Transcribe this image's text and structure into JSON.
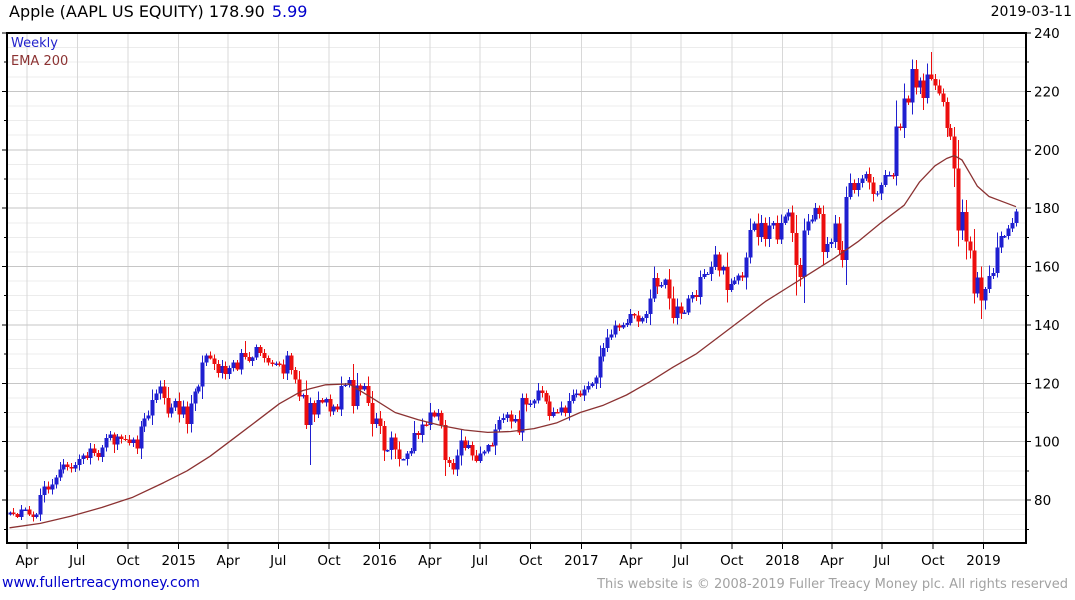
{
  "header": {
    "title": "Apple (AAPL US EQUITY) 178.90",
    "change": "5.99",
    "date": "2019-03-11"
  },
  "legend": {
    "timeframe": "Weekly",
    "overlay": "EMA 200"
  },
  "footer": {
    "site": "www.fullertreacymoney.com",
    "copyright": "This website is © 2008-2019 Fuller Treacy Money plc. All rights reserved"
  },
  "colors": {
    "up": "#1f1fd0",
    "down": "#ec0e0e",
    "ema": "#8b3232",
    "grid_minor": "#ececec",
    "grid_major": "#c6c6c6",
    "grid_vertical": "#d8d8d8",
    "axis": "#000000",
    "tick_text": "#000000",
    "title_change": "#0000cc",
    "link": "#0000cc",
    "copyright_text": "#a2a2a2"
  },
  "chart_data": {
    "type": "candlestick",
    "title": "Apple (AAPL US EQUITY)",
    "timeframe": "Weekly",
    "last_price": 178.9,
    "change": 5.99,
    "as_of": "2019-03-11",
    "legend_position": "top-left",
    "grid": true,
    "y_axis": {
      "side": "right",
      "min": 65.3,
      "max": 240,
      "tick_labels": [
        240,
        220,
        200,
        180,
        160,
        140,
        120,
        100,
        80
      ],
      "major_step": 20,
      "minor_step": 5
    },
    "x_axis": {
      "ticks": [
        {
          "label": "Apr",
          "week": 4.57
        },
        {
          "label": "Jul",
          "week": 17.57
        },
        {
          "label": "Oct",
          "week": 30.7
        },
        {
          "label": "2015",
          "week": 43.86
        },
        {
          "label": "Apr",
          "week": 56.7
        },
        {
          "label": "Jul",
          "week": 69.7
        },
        {
          "label": "Oct",
          "week": 82.86
        },
        {
          "label": "2016",
          "week": 96.0
        },
        {
          "label": "Apr",
          "week": 109.0
        },
        {
          "label": "Jul",
          "week": 122.0
        },
        {
          "label": "Oct",
          "week": 135.14
        },
        {
          "label": "2017",
          "week": 148.29
        },
        {
          "label": "Apr",
          "week": 161.14
        },
        {
          "label": "Jul",
          "week": 174.14
        },
        {
          "label": "Oct",
          "week": 187.29
        },
        {
          "label": "2018",
          "week": 200.43
        },
        {
          "label": "Apr",
          "week": 213.29
        },
        {
          "label": "Jul",
          "week": 226.29
        },
        {
          "label": "Oct",
          "week": 239.43
        },
        {
          "label": "2019",
          "week": 252.57
        }
      ]
    },
    "weekly_closes": [
      75.8,
      75.2,
      74.2,
      76.7,
      76.8,
      75.0,
      74.2,
      75.0,
      81.7,
      84.7,
      83.6,
      85.4,
      87.7,
      90.4,
      92.2,
      91.3,
      90.9,
      92.0,
      94.0,
      95.2,
      94.4,
      97.7,
      96.1,
      94.7,
      98.0,
      101.3,
      102.5,
      99.0,
      101.7,
      101.0,
      100.8,
      99.6,
      100.7,
      97.7,
      105.2,
      108.0,
      109.0,
      114.2,
      116.5,
      118.9,
      115.0,
      109.7,
      111.8,
      114.0,
      109.3,
      112.0,
      106.0,
      113.0,
      117.2,
      118.9,
      127.1,
      129.5,
      128.5,
      126.6,
      123.6,
      125.9,
      123.2,
      125.3,
      127.1,
      124.8,
      130.3,
      129.0,
      127.6,
      128.8,
      132.5,
      130.3,
      128.7,
      127.2,
      126.6,
      126.8,
      126.4,
      123.3,
      129.6,
      124.5,
      121.3,
      115.5,
      116.0,
      105.8,
      113.3,
      109.3,
      114.2,
      113.5,
      114.7,
      110.4,
      112.1,
      111.0,
      119.1,
      119.5,
      121.1,
      112.3,
      119.3,
      117.8,
      119.0,
      113.2,
      106.0,
      108.0,
      105.3,
      97.0,
      97.1,
      101.4,
      97.3,
      94.0,
      94.0,
      96.0,
      96.9,
      103.0,
      102.3,
      105.9,
      105.7,
      110.0,
      108.7,
      109.9,
      105.7,
      93.7,
      92.7,
      90.5,
      95.2,
      100.4,
      97.9,
      98.8,
      95.3,
      93.4,
      95.9,
      96.7,
      98.8,
      98.7,
      104.2,
      107.5,
      108.2,
      109.4,
      106.9,
      107.7,
      103.1,
      114.9,
      112.7,
      113.1,
      114.1,
      117.6,
      116.6,
      113.7,
      108.8,
      110.1,
      110.0,
      111.8,
      109.9,
      114.0,
      116.0,
      116.5,
      115.8,
      117.9,
      119.0,
      120.0,
      122.0,
      129.1,
      132.1,
      135.7,
      136.7,
      139.8,
      139.1,
      140.0,
      140.6,
      143.7,
      143.3,
      141.1,
      142.3,
      143.7,
      149.0,
      156.1,
      153.1,
      153.6,
      155.5,
      149.0,
      142.3,
      146.3,
      144.0,
      144.2,
      149.0,
      150.3,
      149.5,
      156.4,
      157.5,
      157.5,
      159.9,
      164.1,
      158.6,
      159.9,
      151.9,
      154.1,
      155.3,
      157.0,
      156.3,
      163.1,
      172.5,
      174.7,
      170.2,
      175.0,
      169.4,
      174.0,
      175.0,
      169.2,
      175.0,
      177.1,
      178.5,
      171.5,
      160.5,
      156.4,
      172.4,
      175.5,
      176.2,
      180.0,
      178.0,
      164.9,
      167.8,
      168.4,
      174.7,
      165.7,
      162.3,
      183.8,
      188.6,
      186.3,
      188.6,
      190.2,
      191.7,
      188.8,
      184.9,
      185.1,
      188.0,
      191.3,
      191.4,
      191.0,
      208.0,
      207.5,
      217.6,
      216.2,
      227.6,
      221.3,
      223.8,
      217.7,
      225.7,
      224.3,
      222.1,
      219.3,
      216.3,
      207.5,
      204.5,
      193.5,
      172.3,
      178.6,
      168.5,
      165.5,
      150.7,
      156.2,
      148.3,
      152.3,
      156.8,
      157.8,
      166.5,
      170.4,
      170.4,
      173.0,
      175.0,
      178.9
    ],
    "wick_overrides": {
      "61": {
        "h": 134.5
      },
      "78": {
        "l": 92.0
      },
      "204": {
        "l": 150.1
      },
      "239": {
        "h": 233.5
      },
      "252": {
        "l": 142.0
      }
    },
    "ema": {
      "label": "EMA 200",
      "keyframes": [
        [
          0,
          70.5
        ],
        [
          8,
          72.0
        ],
        [
          16,
          74.5
        ],
        [
          24,
          77.5
        ],
        [
          32,
          81.0
        ],
        [
          40,
          86.0
        ],
        [
          46,
          90.0
        ],
        [
          52,
          95.0
        ],
        [
          58,
          101.0
        ],
        [
          64,
          107.0
        ],
        [
          70,
          113.0
        ],
        [
          76,
          117.5
        ],
        [
          82,
          119.5
        ],
        [
          88,
          119.8
        ],
        [
          94,
          115.0
        ],
        [
          100,
          110.0
        ],
        [
          106,
          107.5
        ],
        [
          112,
          105.5
        ],
        [
          118,
          104.0
        ],
        [
          124,
          103.2
        ],
        [
          130,
          103.5
        ],
        [
          136,
          104.5
        ],
        [
          142,
          106.5
        ],
        [
          148,
          110.0
        ],
        [
          154,
          112.5
        ],
        [
          160,
          116.0
        ],
        [
          166,
          120.5
        ],
        [
          172,
          125.5
        ],
        [
          178,
          130.0
        ],
        [
          184,
          136.0
        ],
        [
          190,
          142.0
        ],
        [
          196,
          148.0
        ],
        [
          202,
          153.0
        ],
        [
          208,
          158.0
        ],
        [
          214,
          163.0
        ],
        [
          220,
          168.5
        ],
        [
          226,
          175.0
        ],
        [
          232,
          181.0
        ],
        [
          236,
          189.0
        ],
        [
          240,
          194.5
        ],
        [
          243,
          197.0
        ],
        [
          245,
          198.0
        ],
        [
          247,
          196.5
        ],
        [
          249,
          192.0
        ],
        [
          251,
          187.5
        ],
        [
          254,
          184.0
        ],
        [
          258,
          182.0
        ],
        [
          261,
          180.5
        ]
      ]
    }
  }
}
